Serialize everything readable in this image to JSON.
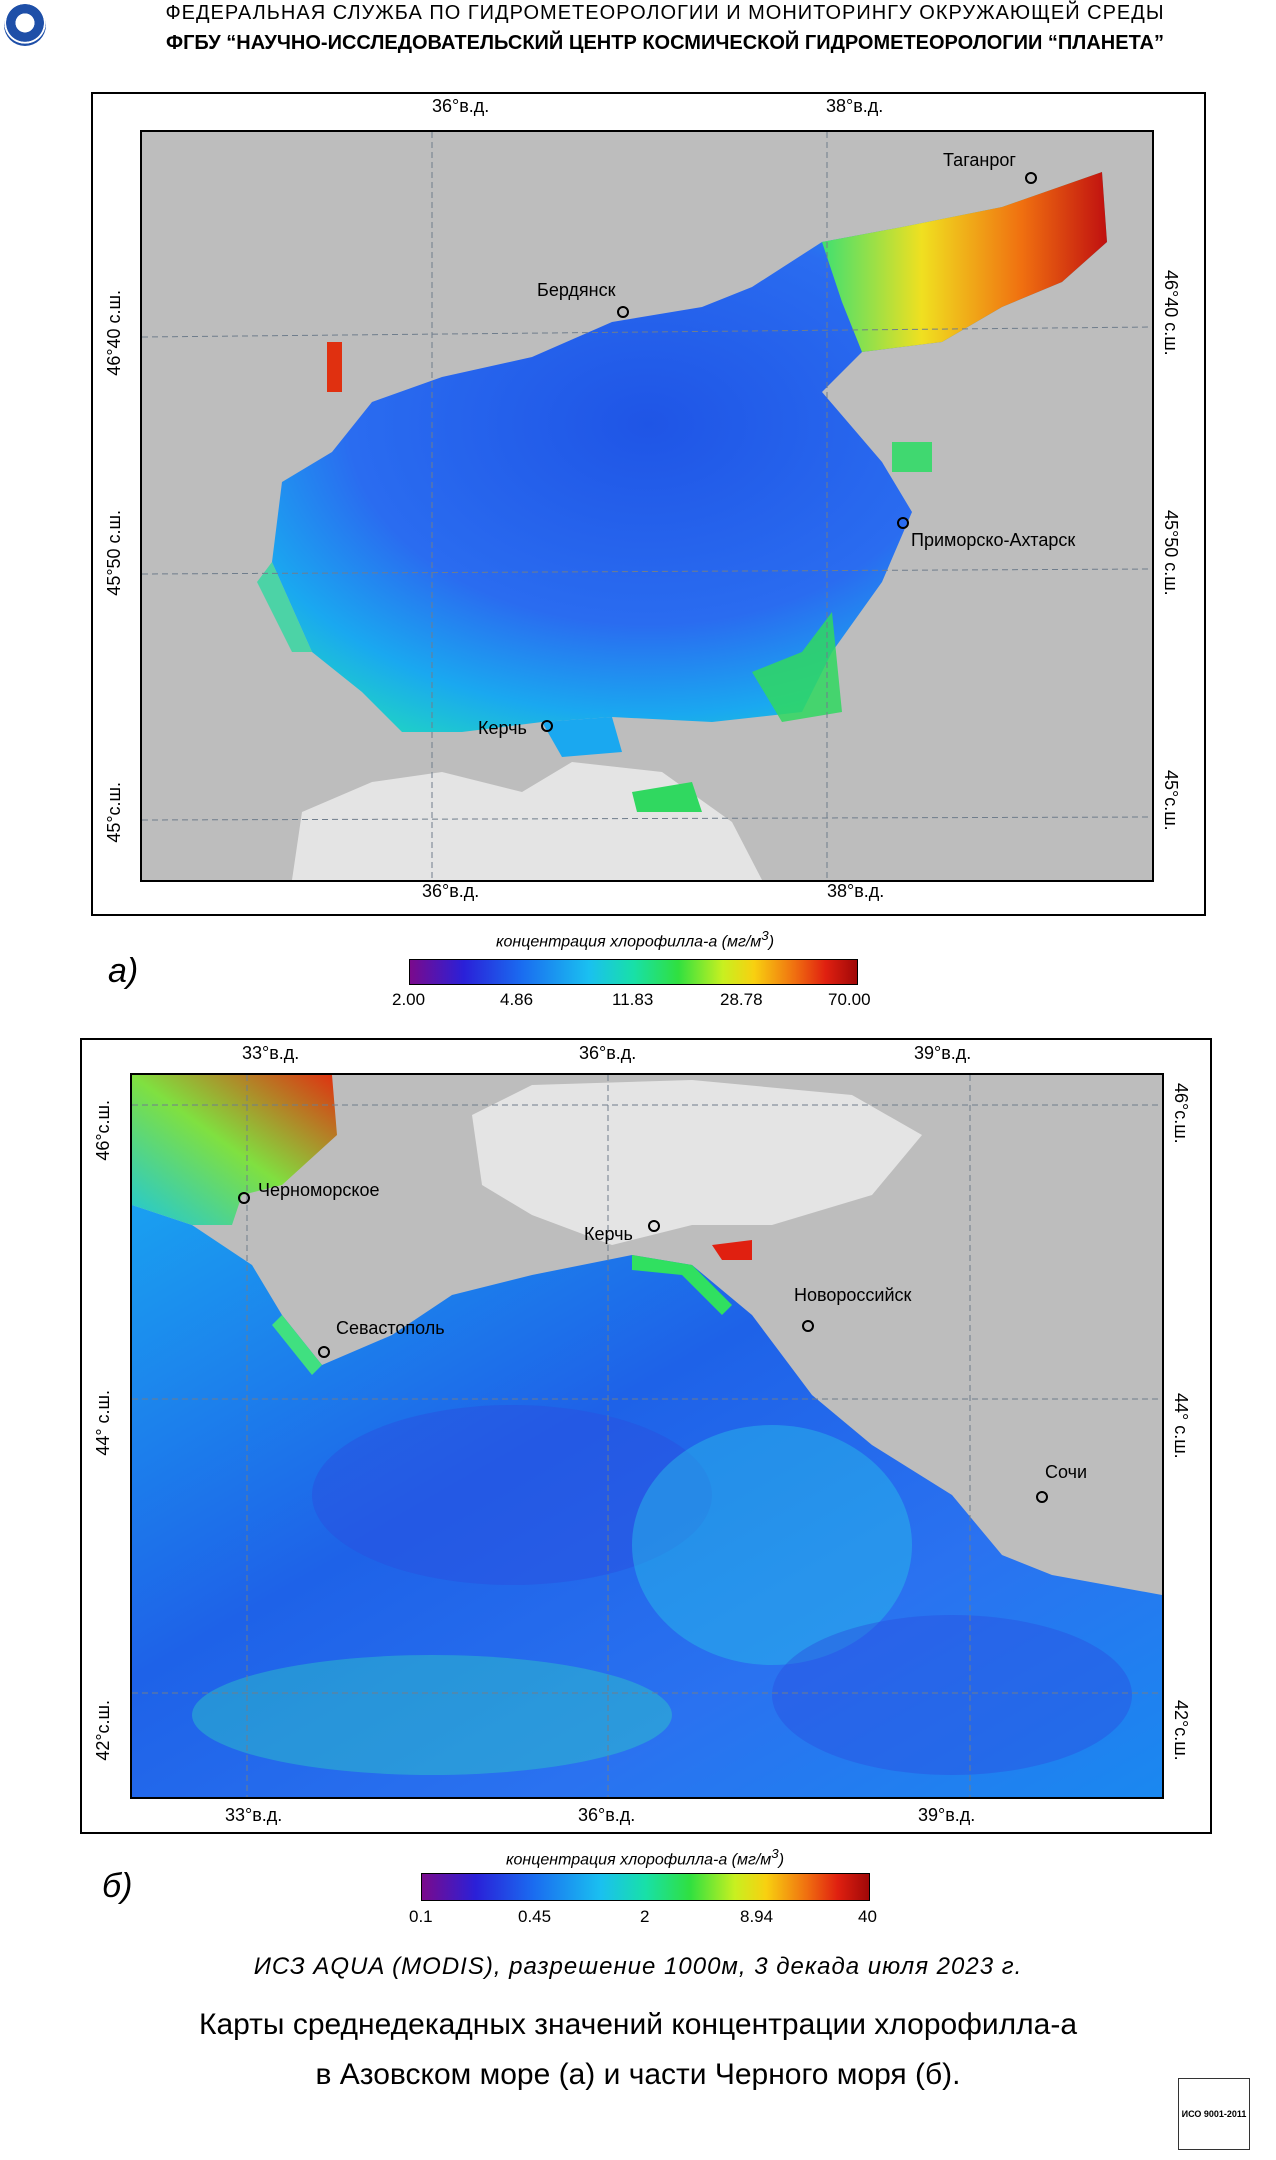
{
  "header": {
    "line1": "ФЕДЕРАЛЬНАЯ  СЛУЖБА  ПО ГИДРОМЕТЕОРОЛОГИИ И МОНИТОРИНГУ ОКРУЖАЮЩЕЙ СРЕДЫ",
    "line2": "ФГБУ “НАУЧНО-ИССЛЕДОВАТЕЛЬСКИЙ ЦЕНТР КОСМИЧЕСКОЙ ГИДРОМЕТЕОРОЛОГИИ “ПЛАНЕТА”"
  },
  "map_a": {
    "panel_label": "а)",
    "lon_top": [
      "36°в.д.",
      "38°в.д."
    ],
    "lon_bottom": [
      "36°в.д.",
      "38°в.д."
    ],
    "lat_left": [
      "46°40 с.ш.",
      "45°50 с.ш.",
      "45°с.ш."
    ],
    "lat_right": [
      "46°40 с.ш.",
      "45°50 с.ш.",
      "45°с.ш."
    ],
    "cities": [
      "Таганрог",
      "Бердянск",
      "Приморско-Ахтарск",
      "Керчь"
    ],
    "colorbar_title": "концентрация хлорофилла-а  (мг/м",
    "colorbar_title_sup": "3",
    "colorbar_title_end": ")",
    "colorbar_labels": [
      "2.00",
      "4.86",
      "11.83",
      "28.78",
      "70.00"
    ]
  },
  "map_b": {
    "panel_label": "б)",
    "lon_top": [
      "33°в.д.",
      "36°в.д.",
      "39°в.д."
    ],
    "lon_bottom": [
      "33°в.д.",
      "36°в.д.",
      "39°в.д."
    ],
    "lat_left": [
      "46°с.ш.",
      "44° с.ш.",
      "42°с.ш."
    ],
    "lat_right": [
      "46°с.ш.",
      "44° с.ш.",
      "42°с.ш."
    ],
    "cities": [
      "Черноморское",
      "Керчь",
      "Новороссийск",
      "Севастополь",
      "Сочи"
    ],
    "colorbar_title": "концентрация хлорофилла-а  (мг/м",
    "colorbar_title_sup": "3",
    "colorbar_title_end": ")",
    "colorbar_labels": [
      "0.1",
      "0.45",
      "2",
      "8.94",
      "40"
    ]
  },
  "satellite_line": "ИСЗ AQUA (MODIS), разрешение 1000м, 3 декада июля 2023 г.",
  "caption": {
    "line1": "Карты среднедекадных значений концентрации хлорофилла-а",
    "line2": "в Азовском море (а) и части Черного моря (б)."
  },
  "iso_badge": "ИСО 9001-2011",
  "colors": {
    "land": "#bdbdbd",
    "crimea_cloud": "#e4e4e4",
    "grid": "#6f7d8c",
    "colormap": [
      "#7a0a8c",
      "#2a20d8",
      "#1a6cf0",
      "#1ac0f0",
      "#18e0a8",
      "#30e040",
      "#c8f020",
      "#f8d010",
      "#f07010",
      "#e02010",
      "#a00808"
    ]
  }
}
